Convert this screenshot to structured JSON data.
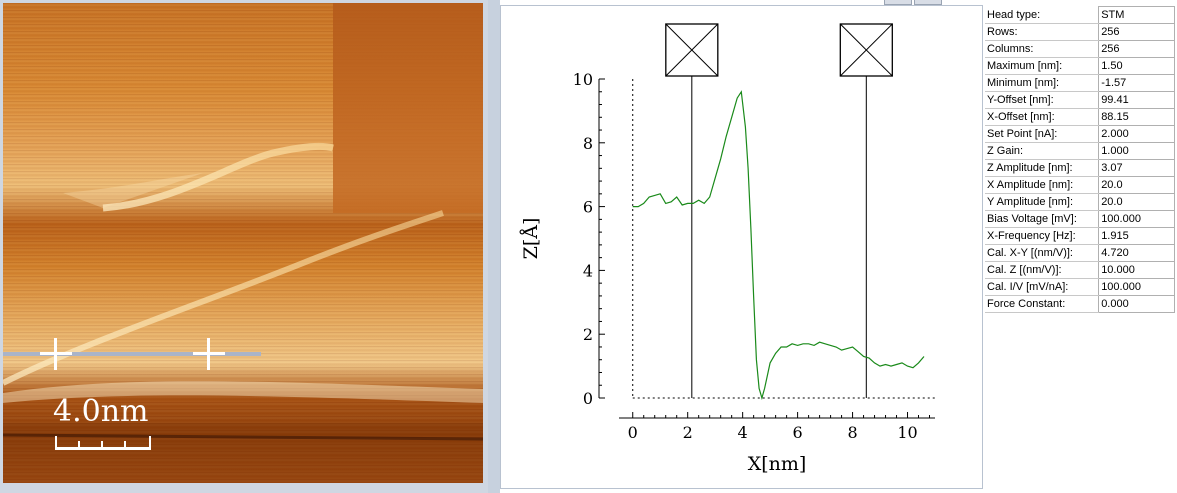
{
  "image_panel": {
    "scale_label": "4.0nm"
  },
  "profile": {
    "chart_data": {
      "type": "line",
      "xlabel": "X[nm]",
      "ylabel": "Z[Å]",
      "xlim": [
        -0.5,
        11
      ],
      "ylim": [
        0,
        10
      ],
      "xticks": [
        0,
        2,
        4,
        6,
        8,
        10
      ],
      "yticks": [
        0,
        2,
        4,
        6,
        8,
        10
      ],
      "series": [
        {
          "color": "#1a8a1a",
          "x": [
            0,
            0.2,
            0.4,
            0.6,
            0.8,
            1.0,
            1.2,
            1.4,
            1.6,
            1.8,
            2.0,
            2.2,
            2.4,
            2.6,
            2.8,
            3.0,
            3.2,
            3.4,
            3.6,
            3.8,
            3.95,
            4.1,
            4.2,
            4.3,
            4.4,
            4.5,
            4.6,
            4.7,
            4.8,
            5.0,
            5.2,
            5.4,
            5.6,
            5.8,
            6.0,
            6.2,
            6.4,
            6.6,
            6.8,
            7.0,
            7.2,
            7.4,
            7.6,
            7.8,
            8.0,
            8.2,
            8.4,
            8.6,
            8.8,
            9.0,
            9.2,
            9.4,
            9.6,
            9.8,
            10.0,
            10.2,
            10.4,
            10.6
          ],
          "y": [
            6.0,
            6.0,
            6.1,
            6.3,
            6.35,
            6.4,
            6.1,
            6.15,
            6.3,
            6.05,
            6.1,
            6.1,
            6.2,
            6.1,
            6.3,
            6.9,
            7.5,
            8.2,
            8.8,
            9.4,
            9.6,
            8.5,
            7.2,
            5.3,
            3.2,
            1.2,
            0.3,
            0.0,
            0.3,
            1.1,
            1.4,
            1.6,
            1.6,
            1.7,
            1.65,
            1.7,
            1.7,
            1.65,
            1.75,
            1.7,
            1.65,
            1.6,
            1.5,
            1.55,
            1.6,
            1.45,
            1.3,
            1.25,
            1.1,
            1.0,
            1.05,
            1.0,
            1.05,
            1.1,
            1.0,
            0.95,
            1.1,
            1.3
          ]
        }
      ],
      "markers_x": [
        2.15,
        8.5
      ],
      "zero_line": true
    }
  },
  "parameters": [
    {
      "label": "Head type:",
      "value": "STM"
    },
    {
      "label": "Rows:",
      "value": "256"
    },
    {
      "label": "Columns:",
      "value": "256"
    },
    {
      "label": "Maximum [nm]:",
      "value": "1.50"
    },
    {
      "label": "Minimum [nm]:",
      "value": "-1.57"
    },
    {
      "label": "Y-Offset [nm]:",
      "value": "99.41"
    },
    {
      "label": "X-Offset [nm]:",
      "value": "88.15"
    },
    {
      "label": "Set Point [nA]:",
      "value": "2.000"
    },
    {
      "label": "Z Gain:",
      "value": "1.000"
    },
    {
      "label": "Z Amplitude [nm]:",
      "value": "3.07"
    },
    {
      "label": "X Amplitude [nm]:",
      "value": "20.0"
    },
    {
      "label": "Y Amplitude [nm]:",
      "value": "20.0"
    },
    {
      "label": "Bias Voltage [mV]:",
      "value": "100.000"
    },
    {
      "label": "X-Frequency [Hz]:",
      "value": "1.915"
    },
    {
      "label": "Cal. X-Y [(nm/V)]:",
      "value": "4.720"
    },
    {
      "label": "Cal. Z [(nm/V)]:",
      "value": "10.000"
    },
    {
      "label": "Cal. I/V [mV/nA]:",
      "value": "100.000"
    },
    {
      "label": "Force Constant:",
      "value": "0.000"
    }
  ]
}
